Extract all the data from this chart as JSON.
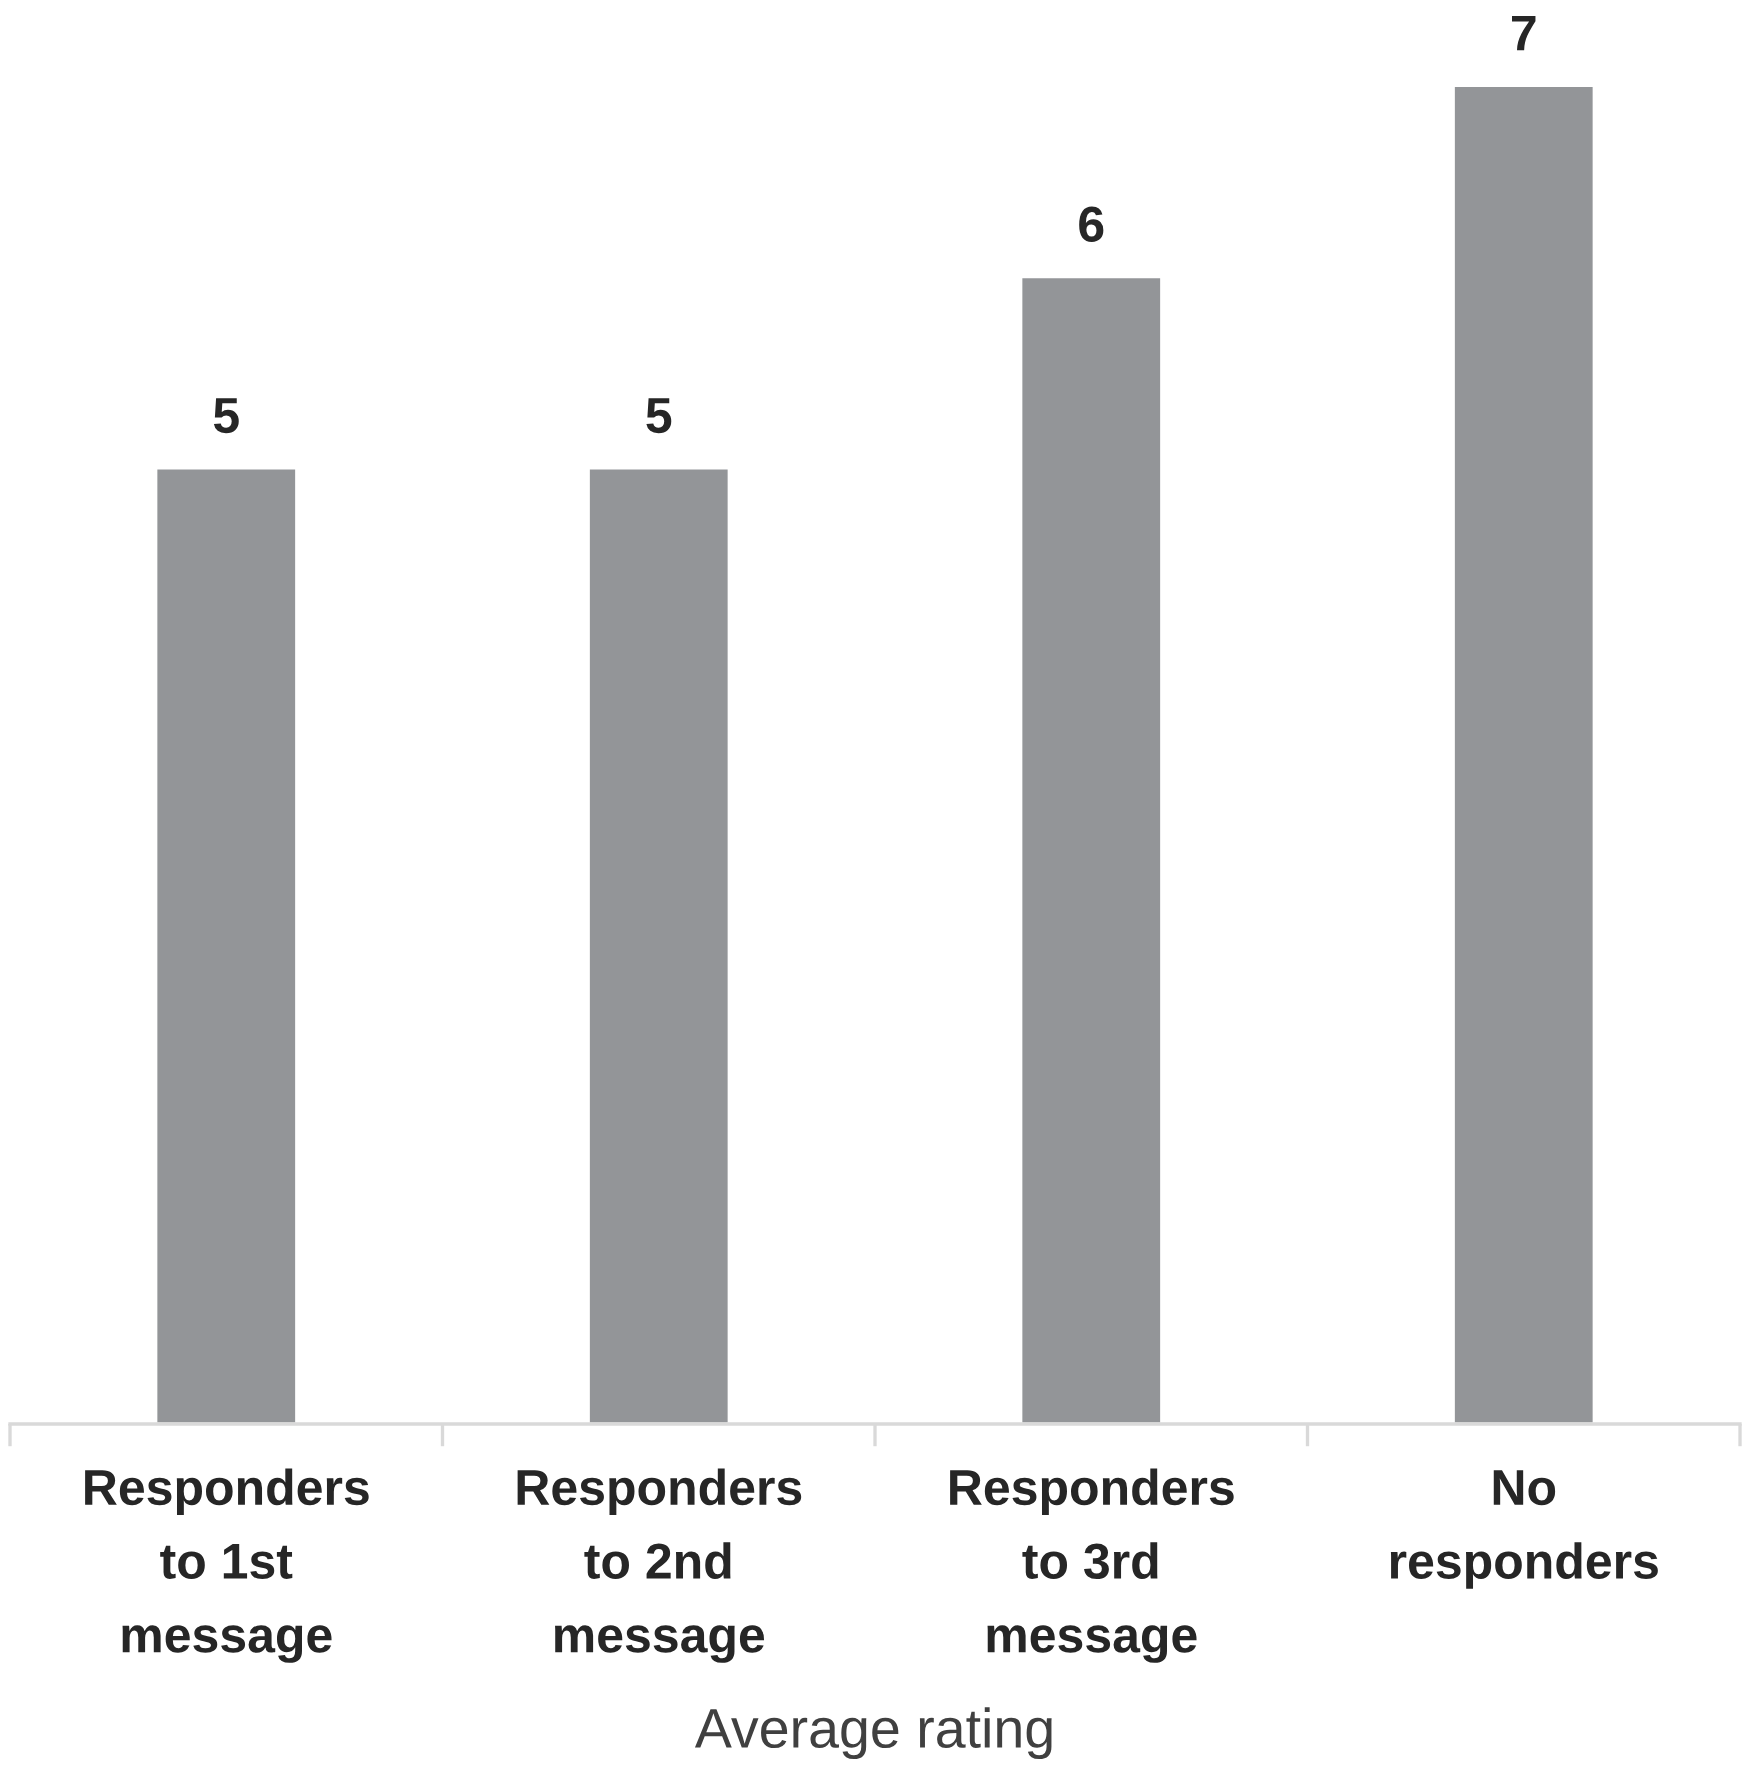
{
  "chart_data": {
    "type": "bar",
    "xlabel": "Average rating",
    "categories": [
      "Responders\nto 1st\nmessage",
      "Responders\nto 2nd\nmessage",
      "Responders\nto 3rd\nmessage",
      "No\nresponders"
    ],
    "values": [
      5,
      5,
      6,
      7
    ],
    "color": "#939598",
    "data_labels": true
  }
}
